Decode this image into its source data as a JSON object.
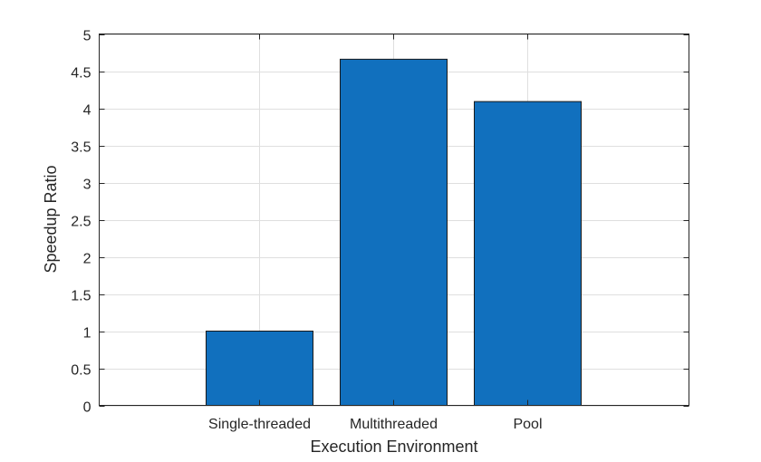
{
  "chart_data": {
    "type": "bar",
    "categories": [
      "Single-threaded",
      "Multithreaded",
      "Pool"
    ],
    "values": [
      1,
      4.66,
      4.09
    ],
    "title": "",
    "xlabel": "Execution Environment",
    "ylabel": "Speedup Ratio",
    "ylim": [
      0,
      5
    ],
    "yticks": [
      "0",
      "0.5",
      "1",
      "1.5",
      "2",
      "2.5",
      "3",
      "3.5",
      "4",
      "4.5",
      "5"
    ],
    "grid": true,
    "bar_color": "#1170BE",
    "edge_color": "#1A1A1A"
  }
}
